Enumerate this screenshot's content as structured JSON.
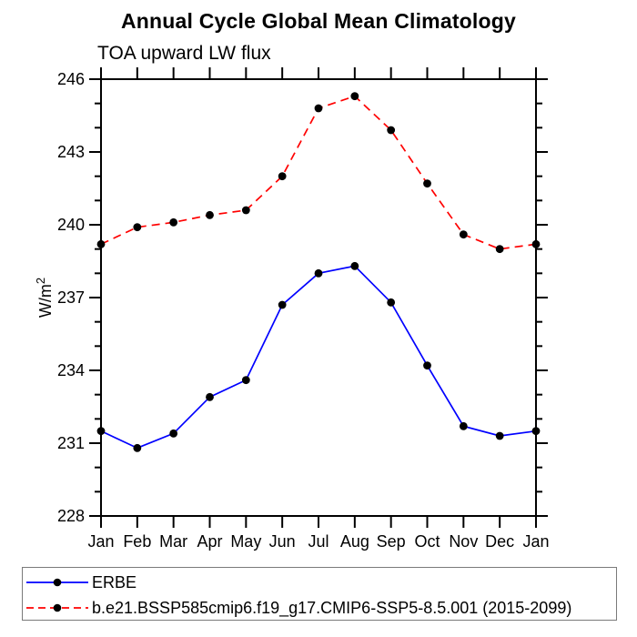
{
  "window": {
    "background": "#ffffff"
  },
  "chart_data": {
    "type": "line",
    "title": "Annual Cycle Global Mean Climatology",
    "subtitle": "TOA upward LW flux",
    "ylabel": "W/m²",
    "ylabel_base": "W/m",
    "ylabel_superscript": "2",
    "categories": [
      "Jan",
      "Feb",
      "Mar",
      "Apr",
      "May",
      "Jun",
      "Jul",
      "Aug",
      "Sep",
      "Oct",
      "Nov",
      "Dec",
      "Jan"
    ],
    "ylim": [
      228,
      246
    ],
    "yticks_major": [
      228,
      231,
      234,
      237,
      240,
      243,
      246
    ],
    "ytick_minor_step": 1,
    "grid": false,
    "ticks_direction": "outward",
    "legend_position": "bottom-left-box",
    "axis_color": "#000000",
    "marker_color": "#000000",
    "marker_shape": "filled-circle",
    "series": [
      {
        "name": "ERBE",
        "color": "#0000ff",
        "line_style": "solid",
        "values": [
          231.5,
          230.8,
          231.4,
          232.9,
          233.6,
          236.7,
          238.0,
          238.3,
          236.8,
          234.2,
          231.7,
          231.3,
          231.5
        ]
      },
      {
        "name": "b.e21.BSSP585cmip6.f19_g17.CMIP6-SSP5-8.5.001 (2015-2099)",
        "color": "#ff0000",
        "line_style": "dashed",
        "values": [
          239.2,
          239.9,
          240.1,
          240.4,
          240.6,
          242.0,
          244.8,
          245.3,
          243.9,
          241.7,
          239.6,
          239.0,
          239.2
        ]
      }
    ]
  }
}
